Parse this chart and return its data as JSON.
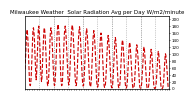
{
  "title": "Milwaukee Weather  Solar Radiation Avg per Day W/m2/minute",
  "line_color": "#cc0000",
  "line_style": "--",
  "line_width": 0.8,
  "grid_color": "#999999",
  "grid_style": ":",
  "bg_color": "#ffffff",
  "title_fontsize": 4.0,
  "tick_fontsize": 3.0,
  "ylim": [
    0,
    210
  ],
  "y_ticks": [
    0,
    20,
    40,
    60,
    80,
    100,
    120,
    140,
    160,
    180,
    200
  ],
  "y_values": [
    55,
    80,
    105,
    140,
    160,
    170,
    155,
    130,
    95,
    55,
    25,
    10,
    8,
    15,
    35,
    65,
    100,
    140,
    170,
    175,
    165,
    145,
    115,
    80,
    45,
    25,
    40,
    75,
    115,
    150,
    175,
    180,
    165,
    135,
    100,
    60,
    35,
    20,
    30,
    60,
    95,
    130,
    160,
    175,
    170,
    155,
    130,
    100,
    65,
    35,
    15,
    8,
    12,
    30,
    60,
    100,
    140,
    165,
    175,
    170,
    155,
    130,
    100,
    65,
    35,
    15,
    8,
    12,
    30,
    60,
    95,
    130,
    160,
    175,
    185,
    175,
    160,
    135,
    105,
    70,
    40,
    18,
    8,
    10,
    25,
    55,
    90,
    125,
    155,
    170,
    180,
    170,
    150,
    125,
    95,
    62,
    35,
    18,
    10,
    15,
    35,
    68,
    105,
    140,
    165,
    178,
    183,
    172,
    152,
    128,
    98,
    65,
    38,
    18,
    8,
    10,
    25,
    52,
    88,
    122,
    150,
    168,
    178,
    168,
    148,
    122,
    92,
    60,
    33,
    15,
    7,
    8,
    22,
    48,
    82,
    115,
    145,
    162,
    172,
    162,
    142,
    118,
    88,
    57,
    30,
    12,
    5,
    6,
    18,
    42,
    75,
    108,
    138,
    157,
    167,
    158,
    138,
    114,
    85,
    54,
    28,
    10,
    4,
    5,
    16,
    37,
    68,
    100,
    130,
    150,
    160,
    152,
    132,
    108,
    80,
    50,
    25,
    8,
    3,
    4,
    13,
    32,
    60,
    92,
    122,
    143,
    153,
    145,
    125,
    103,
    76,
    47,
    23,
    7,
    2,
    3,
    11,
    28,
    55,
    85,
    115,
    136,
    147,
    140,
    120,
    98,
    72,
    44,
    20,
    6,
    2,
    3,
    10,
    25,
    50,
    80,
    108,
    130,
    140,
    133,
    113,
    93,
    68,
    42,
    18,
    5,
    1,
    2,
    8,
    22,
    45,
    72,
    100,
    122,
    133,
    127,
    108,
    88,
    63,
    38,
    16,
    4,
    1,
    1,
    7,
    18,
    40,
    65,
    93,
    115,
    126,
    120,
    102,
    83,
    59,
    35,
    14,
    3,
    1,
    1,
    6,
    15,
    35,
    58,
    85,
    108,
    120,
    114,
    97,
    78,
    55,
    32,
    12,
    2,
    0,
    1,
    4,
    12,
    30,
    52,
    78,
    100,
    113,
    108,
    91,
    73,
    51,
    30,
    10,
    2,
    0,
    0,
    3,
    10,
    25,
    47,
    72,
    93,
    107,
    102,
    86,
    68,
    48,
    28,
    8,
    1,
    0,
    0,
    2,
    8,
    20,
    42,
    65,
    86,
    100,
    96,
    81,
    64,
    45,
    25,
    6,
    1,
    0,
    0
  ],
  "num_grid_lines": 11,
  "num_xticks": 60
}
